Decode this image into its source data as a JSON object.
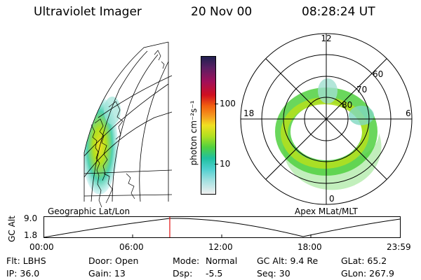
{
  "header": {
    "instrument": "Ultraviolet Imager",
    "date": "20 Nov 00",
    "time": "08:28:24 UT"
  },
  "colorbar": {
    "unit_label": "photon cm⁻²s⁻¹",
    "ticks": [
      "100",
      "10"
    ],
    "colors": [
      "#202050",
      "#5a1f63",
      "#a0105a",
      "#d01020",
      "#f26010",
      "#f5a020",
      "#f0e020",
      "#b0e020",
      "#50d040",
      "#20c0a0",
      "#50d0d0",
      "#a0e0e0",
      "#f0f0f0"
    ]
  },
  "polar_plot": {
    "title": "Apex MLat/MLT",
    "mlt_labels": {
      "top": "12",
      "left": "18",
      "right": "6",
      "bottom": "0"
    },
    "lat_labels": [
      "60",
      "70",
      "80"
    ]
  },
  "geo_plot": {
    "title": "Geographic Lat/Lon"
  },
  "orbit": {
    "axis_label": "GC Alt",
    "y_ticks": [
      "9.0",
      "1.8"
    ],
    "x_ticks": [
      "00:00",
      "06:00",
      "12:00",
      "18:00",
      "23:59"
    ],
    "current_time_fraction": 0.353
  },
  "status": {
    "row1": {
      "filter": "Flt: LBHS",
      "door": "Door: Open",
      "mode_label": "Mode:",
      "mode_value": "Normal",
      "gc_alt": "GC Alt: 9.4 Re",
      "glat": "GLat:  65.2"
    },
    "row2": {
      "ip": "IP: 36.0",
      "gain": "Gain: 13",
      "dsp_label": "Dsp:",
      "dsp_value": "-5.5",
      "seq": "Seq: 30",
      "glon": "GLon: 267.9"
    }
  }
}
